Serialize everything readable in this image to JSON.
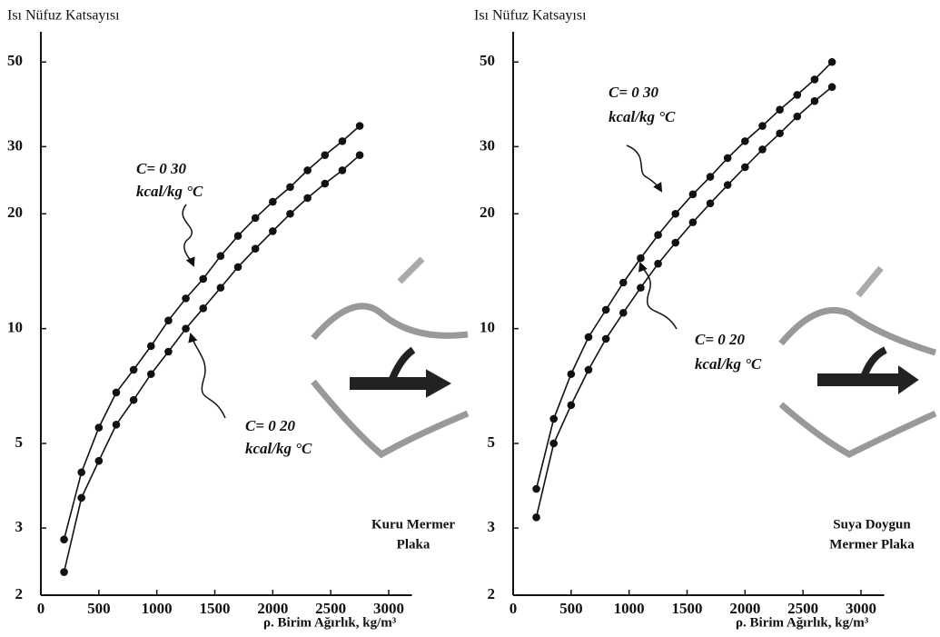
{
  "chart_data": [
    {
      "type": "line",
      "ylabel": "Isı Nüfuz Katsayısı",
      "xlabel": "ρ. Birim Ağırlık, kg/m³",
      "log_scale": true,
      "xlim": [
        0,
        3200
      ],
      "ylim": [
        2,
        60
      ],
      "xticks": [
        0,
        500,
        1000,
        1500,
        2000,
        2500,
        3000
      ],
      "yticks": [
        2,
        3,
        5,
        10,
        20,
        30,
        50
      ],
      "x": [
        200,
        350,
        500,
        650,
        800,
        950,
        1100,
        1250,
        1400,
        1550,
        1700,
        1850,
        2000,
        2150,
        2300,
        2450,
        2600,
        2750
      ],
      "series": [
        {
          "name": "C= 0 30",
          "unit": "kcal/kg °C",
          "color": "#111111",
          "values": [
            2.8,
            4.2,
            5.5,
            6.8,
            7.8,
            9.0,
            10.5,
            12,
            13.5,
            15.5,
            17.5,
            19.5,
            21.5,
            23.5,
            26,
            28.5,
            31,
            34
          ]
        },
        {
          "name": "C= 0 20",
          "unit": "kcal/kg °C",
          "color": "#111111",
          "values": [
            2.3,
            3.6,
            4.5,
            5.6,
            6.5,
            7.6,
            8.7,
            10,
            11.3,
            12.8,
            14.5,
            16.2,
            18,
            20,
            22,
            24,
            26,
            28.5
          ]
        }
      ],
      "label": [
        "Kuru Mermer",
        "Plaka"
      ]
    },
    {
      "type": "line",
      "ylabel": "Isı Nüfuz Katsayısı",
      "xlabel": "ρ. Birim Ağırlık, kg/m³",
      "log_scale": true,
      "xlim": [
        0,
        3200
      ],
      "ylim": [
        2,
        60
      ],
      "xticks": [
        0,
        500,
        1000,
        1500,
        2000,
        2500,
        3000
      ],
      "yticks": [
        2,
        3,
        5,
        10,
        20,
        30,
        50
      ],
      "x": [
        200,
        350,
        500,
        650,
        800,
        950,
        1100,
        1250,
        1400,
        1550,
        1700,
        1850,
        2000,
        2150,
        2300,
        2450,
        2600,
        2750
      ],
      "series": [
        {
          "name": "C= 0 30",
          "unit": "kcal/kg °C",
          "color": "#111111",
          "values": [
            3.8,
            5.8,
            7.6,
            9.5,
            11.2,
            13.2,
            15.3,
            17.6,
            20,
            22.5,
            25,
            28,
            31,
            34,
            37.5,
            41,
            45,
            50
          ]
        },
        {
          "name": "C= 0 20",
          "unit": "kcal/kg °C",
          "color": "#111111",
          "values": [
            3.2,
            5.0,
            6.3,
            7.8,
            9.4,
            11,
            12.8,
            14.8,
            16.8,
            19,
            21.3,
            23.8,
            26.5,
            29.5,
            32.5,
            36,
            39.5,
            43
          ]
        }
      ],
      "label": [
        "Suya Doygun",
        "Mermer Plaka"
      ]
    }
  ]
}
